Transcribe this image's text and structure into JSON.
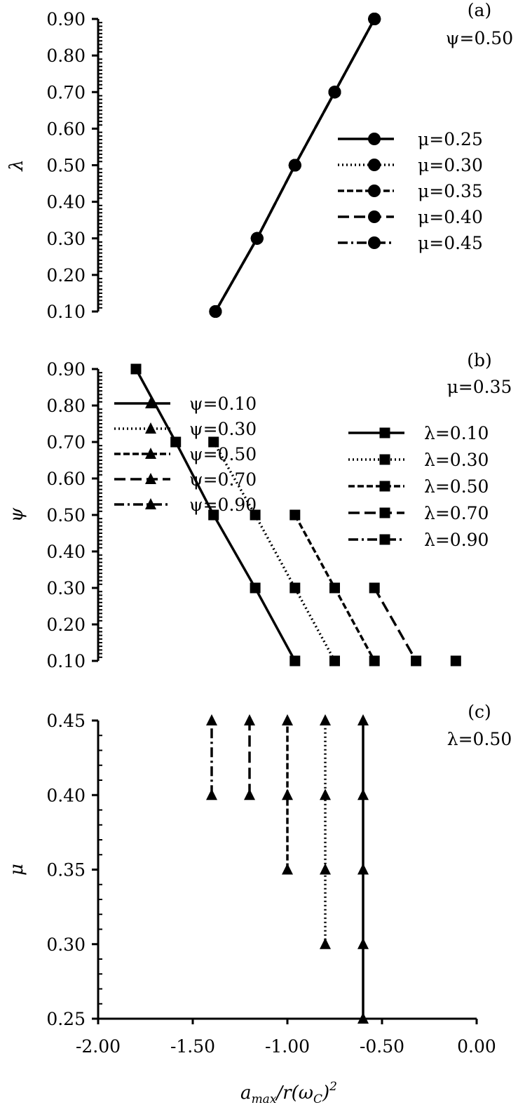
{
  "chart_data": [
    {
      "type": "line",
      "panel_label": "(a)",
      "annotation": "ψ=0.50",
      "ylabel": "λ",
      "xlabel": "",
      "xlim": [
        -2.0,
        0.0
      ],
      "ylim": [
        0.1,
        0.9
      ],
      "yticks": [
        "0.10",
        "0.20",
        "0.30",
        "0.40",
        "0.50",
        "0.60",
        "0.70",
        "0.80",
        "0.90"
      ],
      "marker": "circle",
      "legend_position": "right",
      "series": [
        {
          "name": "μ=0.25",
          "dash": "solid",
          "points": [
            [
              -1.38,
              0.1
            ],
            [
              -1.16,
              0.3
            ],
            [
              -0.96,
              0.5
            ],
            [
              -0.75,
              0.7
            ],
            [
              -0.54,
              0.9
            ]
          ]
        },
        {
          "name": "μ=0.30",
          "dash": "dotted",
          "points": [
            [
              -1.38,
              0.1
            ],
            [
              -1.16,
              0.3
            ],
            [
              -0.96,
              0.5
            ],
            [
              -0.75,
              0.7
            ],
            [
              -0.54,
              0.9
            ]
          ]
        },
        {
          "name": "μ=0.35",
          "dash": "dashed",
          "points": [
            [
              -1.38,
              0.1
            ],
            [
              -1.16,
              0.3
            ],
            [
              -0.96,
              0.5
            ],
            [
              -0.75,
              0.7
            ],
            [
              -0.54,
              0.9
            ]
          ]
        },
        {
          "name": "μ=0.40",
          "dash": "longdash",
          "points": [
            [
              -1.38,
              0.1
            ],
            [
              -1.16,
              0.3
            ],
            [
              -0.96,
              0.5
            ],
            [
              -0.75,
              0.7
            ],
            [
              -0.54,
              0.9
            ]
          ]
        },
        {
          "name": "μ=0.45",
          "dash": "dashdot",
          "points": [
            [
              -1.38,
              0.1
            ],
            [
              -1.16,
              0.3
            ],
            [
              -0.96,
              0.5
            ],
            [
              -0.75,
              0.7
            ],
            [
              -0.54,
              0.9
            ]
          ]
        }
      ]
    },
    {
      "type": "line",
      "panel_label": "(b)",
      "annotation": "μ=0.35",
      "ylabel": "ψ",
      "xlabel": "",
      "xlim": [
        -2.0,
        0.0
      ],
      "ylim": [
        0.1,
        0.9
      ],
      "yticks": [
        "0.10",
        "0.20",
        "0.30",
        "0.40",
        "0.50",
        "0.60",
        "0.70",
        "0.80",
        "0.90"
      ],
      "marker": "square",
      "legend_position": "right",
      "series": [
        {
          "name": "λ=0.10",
          "dash": "solid",
          "points": [
            [
              -1.8,
              0.9
            ],
            [
              -1.59,
              0.7
            ],
            [
              -1.39,
              0.5
            ],
            [
              -1.17,
              0.3
            ],
            [
              -0.96,
              0.1
            ]
          ]
        },
        {
          "name": "λ=0.30",
          "dash": "dotted",
          "points": [
            [
              -1.39,
              0.7
            ],
            [
              -1.17,
              0.5
            ],
            [
              -0.96,
              0.3
            ],
            [
              -0.75,
              0.1
            ]
          ]
        },
        {
          "name": "λ=0.50",
          "dash": "dashed",
          "points": [
            [
              -0.96,
              0.5
            ],
            [
              -0.75,
              0.3
            ],
            [
              -0.54,
              0.1
            ]
          ]
        },
        {
          "name": "λ=0.70",
          "dash": "longdash",
          "points": [
            [
              -0.54,
              0.3
            ],
            [
              -0.32,
              0.1
            ]
          ]
        },
        {
          "name": "λ=0.90",
          "dash": "dashdot",
          "points": [
            [
              -0.11,
              0.1
            ]
          ]
        }
      ]
    },
    {
      "type": "line",
      "panel_label": "(c)",
      "annotation": "λ=0.50",
      "ylabel": "μ",
      "xlabel": "a_max/r(ω_C)²",
      "xlim": [
        -2.0,
        0.0
      ],
      "ylim": [
        0.25,
        0.45
      ],
      "yticks": [
        "0.25",
        "0.30",
        "0.35",
        "0.40",
        "0.45"
      ],
      "xticks": [
        "-2.00",
        "-1.50",
        "-1.00",
        "-0.50",
        "0.00"
      ],
      "marker": "triangle",
      "legend_position": "left",
      "series": [
        {
          "name": "ψ=0.10",
          "dash": "solid",
          "points": [
            [
              -0.6,
              0.25
            ],
            [
              -0.6,
              0.3
            ],
            [
              -0.6,
              0.35
            ],
            [
              -0.6,
              0.4
            ],
            [
              -0.6,
              0.45
            ]
          ]
        },
        {
          "name": "ψ=0.30",
          "dash": "dotted",
          "points": [
            [
              -0.8,
              0.3
            ],
            [
              -0.8,
              0.35
            ],
            [
              -0.8,
              0.4
            ],
            [
              -0.8,
              0.45
            ]
          ]
        },
        {
          "name": "ψ=0.50",
          "dash": "dashed",
          "points": [
            [
              -1.0,
              0.35
            ],
            [
              -1.0,
              0.4
            ],
            [
              -1.0,
              0.45
            ]
          ]
        },
        {
          "name": "ψ=0.70",
          "dash": "longdash",
          "points": [
            [
              -1.2,
              0.4
            ],
            [
              -1.2,
              0.45
            ]
          ]
        },
        {
          "name": "ψ=0.90",
          "dash": "dashdot",
          "points": [
            [
              -1.4,
              0.4
            ],
            [
              -1.4,
              0.45
            ]
          ]
        }
      ]
    }
  ],
  "xlabel_parts": {
    "a": "a",
    "max": "max",
    "r": "/r(ω",
    "c": "C",
    "close": ")",
    "sq": "2"
  }
}
